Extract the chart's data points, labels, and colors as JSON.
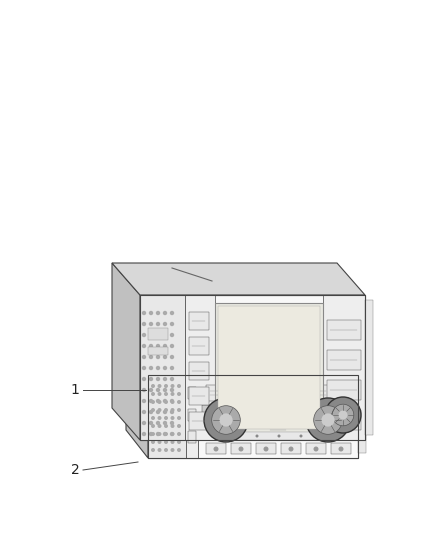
{
  "background_color": "#ffffff",
  "outline_color": "#444444",
  "fill_light": "#f8f8f8",
  "fill_mid": "#e8e8e8",
  "fill_dark": "#d0d0d0",
  "fill_side": "#c0c0c0",
  "fill_top": "#d8d8d8",
  "screen_color": "#e8e8e0",
  "label1_text": "1",
  "label2_text": "2",
  "lw_main": 0.8,
  "lw_detail": 0.5,
  "lw_thin": 0.3
}
